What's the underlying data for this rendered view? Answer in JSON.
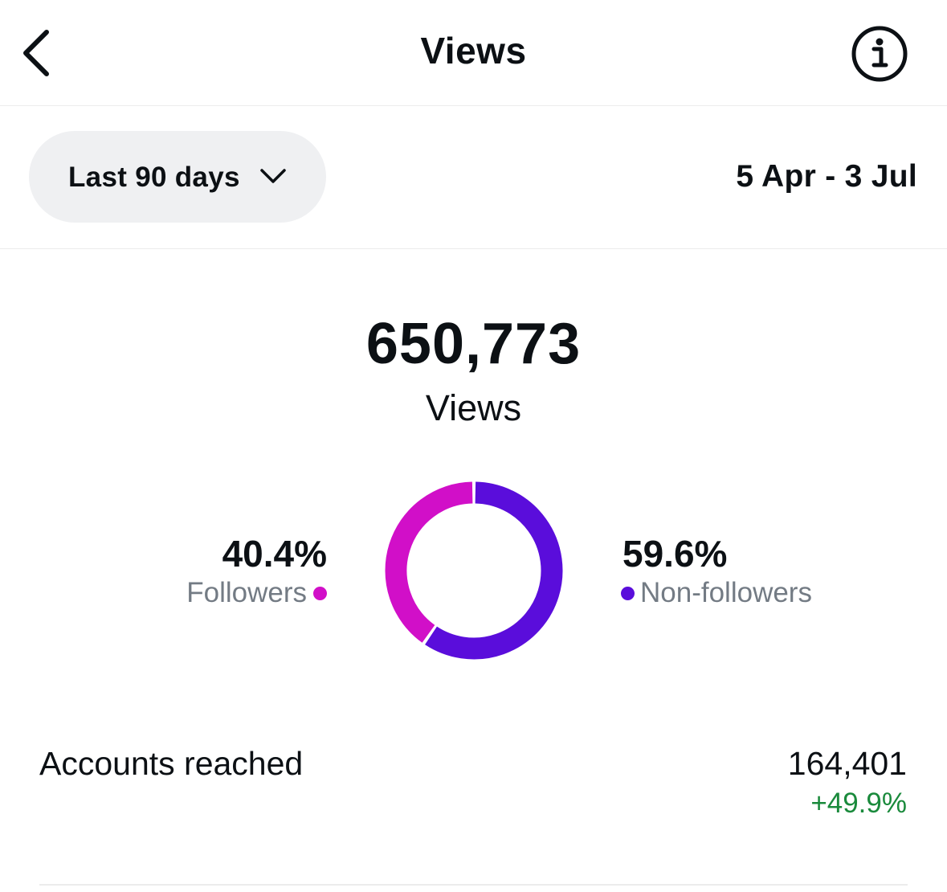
{
  "header": {
    "title": "Views",
    "back_icon": "chevron-left-icon",
    "info_icon": "info-icon"
  },
  "filter": {
    "range_label": "Last 90 days",
    "dropdown_icon": "chevron-down-icon",
    "date_range": "5 Apr - 3 Jul"
  },
  "summary": {
    "total": "650,773",
    "caption": "Views"
  },
  "chart_data": {
    "type": "pie",
    "style": "donut",
    "segments": [
      {
        "label": "Followers",
        "percent_label": "40.4%",
        "value": 40.4,
        "color": "#d10fc8"
      },
      {
        "label": "Non-followers",
        "percent_label": "59.6%",
        "value": 59.6,
        "color": "#5a0ddb"
      }
    ]
  },
  "metrics": [
    {
      "label": "Accounts reached",
      "value": "164,401",
      "change": "+49.9%",
      "change_color": "#1a8a3c"
    }
  ],
  "colors": {
    "text": "#0c1014",
    "muted": "#737b84",
    "pill_bg": "#eff0f2",
    "divider": "#ececec"
  }
}
